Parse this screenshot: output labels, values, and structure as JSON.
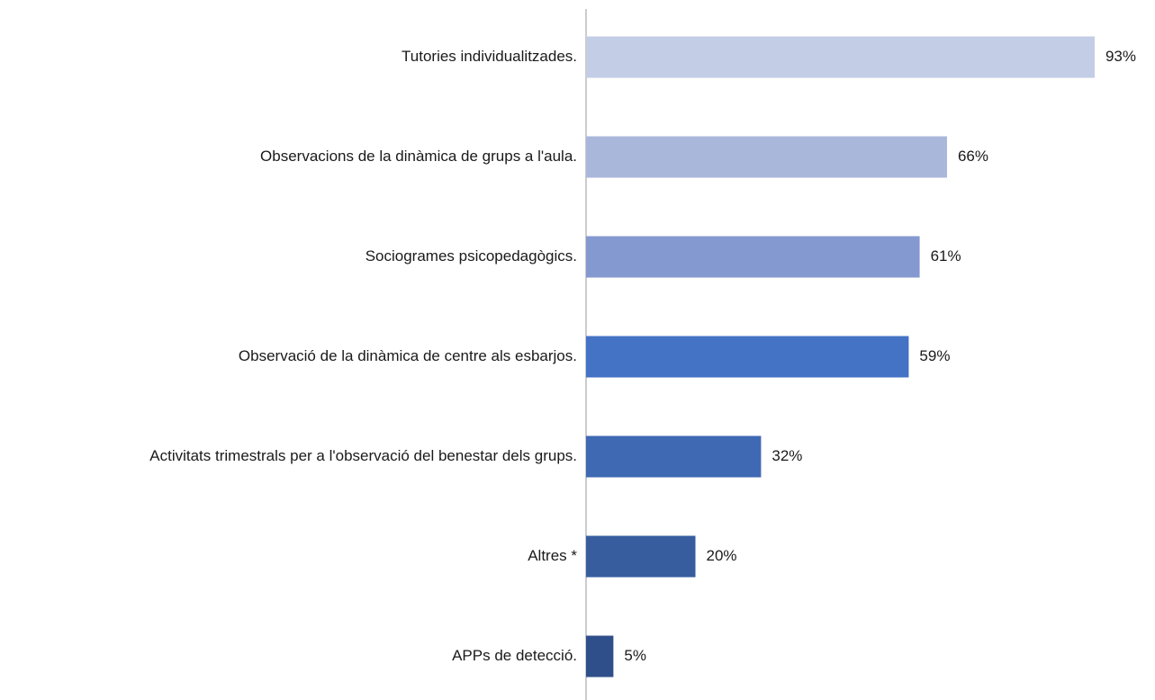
{
  "chart_data": {
    "type": "bar",
    "orientation": "horizontal",
    "categories": [
      "Tutories individualitzades.",
      "Observacions de la dinàmica de grups a l'aula.",
      "Sociogrames psicopedagògics.",
      "Observació de la dinàmica de centre als esbarjos.",
      "Activitats trimestrals per a l'observació del benestar dels grups.",
      "Altres *",
      "APPs de detecció."
    ],
    "values": [
      93,
      66,
      61,
      59,
      32,
      20,
      5
    ],
    "value_labels": [
      "93%",
      "66%",
      "61%",
      "59%",
      "32%",
      "20%",
      "5%"
    ],
    "colors": [
      "#c3cde6",
      "#a9b7db",
      "#8499d0",
      "#4472c4",
      "#3f69b3",
      "#375d9f",
      "#2f4f8b"
    ]
  }
}
